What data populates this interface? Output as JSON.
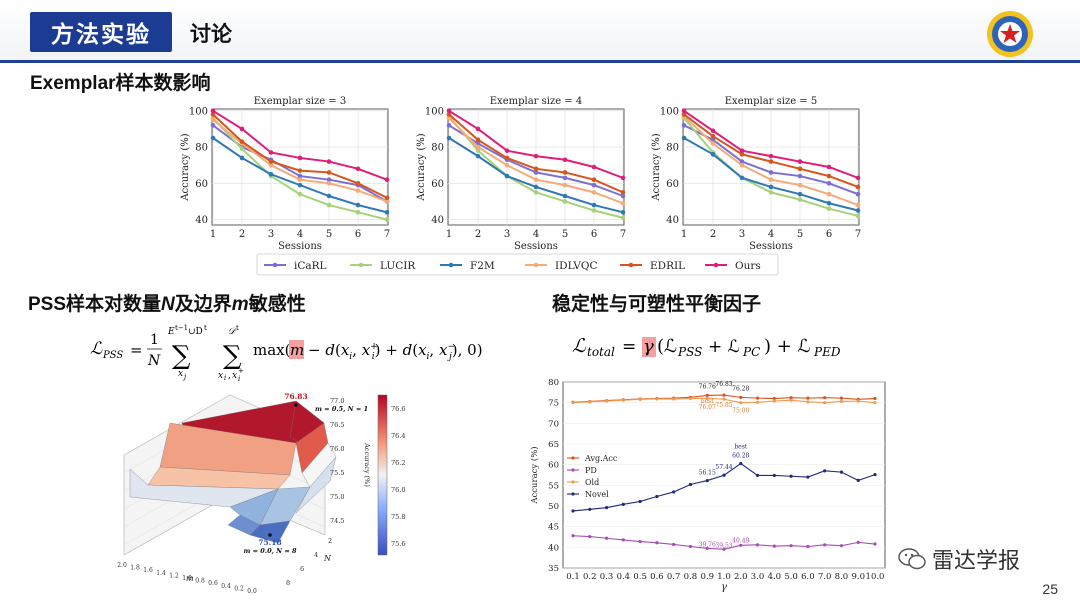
{
  "header": {
    "tab": "方法实验",
    "subtitle": "讨论"
  },
  "sections": {
    "exemplar": "Exemplar样本数影响",
    "pss_pre": "PSS样本对数量",
    "pss_n": "N",
    "pss_mid": "及边界",
    "pss_m": "m",
    "pss_post": "敏感性",
    "balance": "稳定性与可塑性平衡因子"
  },
  "page_number": "25",
  "watermark": "雷达学报",
  "colors": {
    "icarl": "#7b6fd4",
    "lucir": "#a6d27a",
    "f2m": "#2f78b6",
    "idlvqc": "#f4ab78",
    "edril": "#d9541b",
    "ours": "#de1e78"
  },
  "chart_data": [
    {
      "type": "line",
      "title": "Exemplar size = 3",
      "xlabel": "Sessions",
      "ylabel": "Accuracy (%)",
      "x": [
        1,
        2,
        3,
        4,
        5,
        6,
        7
      ],
      "ylim": [
        37,
        101
      ],
      "yticks": [
        40,
        60,
        80,
        100
      ],
      "series": [
        {
          "name": "iCaRL",
          "values": [
            92,
            80,
            73,
            64,
            62,
            59,
            50
          ]
        },
        {
          "name": "LUCIR",
          "values": [
            96,
            79,
            64,
            54,
            48,
            44,
            40
          ]
        },
        {
          "name": "F2M",
          "values": [
            85,
            74,
            65,
            59,
            53,
            48,
            44
          ]
        },
        {
          "name": "IDLVQC",
          "values": [
            95,
            82,
            70,
            62,
            60,
            56,
            50
          ]
        },
        {
          "name": "EDRIL",
          "values": [
            98,
            83,
            72,
            67,
            66,
            60,
            52
          ]
        },
        {
          "name": "Ours",
          "values": [
            100,
            90,
            77,
            74,
            72,
            68,
            62
          ]
        }
      ]
    },
    {
      "type": "line",
      "title": "Exemplar size = 4",
      "xlabel": "Sessions",
      "ylabel": "Accuracy (%)",
      "x": [
        1,
        2,
        3,
        4,
        5,
        6,
        7
      ],
      "ylim": [
        37,
        101
      ],
      "yticks": [
        40,
        60,
        80,
        100
      ],
      "series": [
        {
          "name": "iCaRL",
          "values": [
            92,
            82,
            73,
            66,
            63,
            59,
            53
          ]
        },
        {
          "name": "LUCIR",
          "values": [
            97,
            78,
            64,
            55,
            50,
            45,
            41
          ]
        },
        {
          "name": "F2M",
          "values": [
            85,
            75,
            64,
            58,
            53,
            48,
            44
          ]
        },
        {
          "name": "IDLVQC",
          "values": [
            96,
            80,
            70,
            62,
            59,
            55,
            49
          ]
        },
        {
          "name": "EDRIL",
          "values": [
            98,
            84,
            74,
            68,
            66,
            62,
            55
          ]
        },
        {
          "name": "Ours",
          "values": [
            100,
            90,
            78,
            75,
            73,
            69,
            63
          ]
        }
      ]
    },
    {
      "type": "line",
      "title": "Exemplar size = 5",
      "xlabel": "Sessions",
      "ylabel": "Accuracy (%)",
      "x": [
        1,
        2,
        3,
        4,
        5,
        6,
        7
      ],
      "ylim": [
        37,
        101
      ],
      "yticks": [
        40,
        60,
        80,
        100
      ],
      "series": [
        {
          "name": "iCaRL",
          "values": [
            92,
            84,
            72,
            66,
            64,
            60,
            54
          ]
        },
        {
          "name": "LUCIR",
          "values": [
            96,
            77,
            63,
            55,
            51,
            46,
            42
          ]
        },
        {
          "name": "F2M",
          "values": [
            85,
            76,
            63,
            58,
            54,
            49,
            45
          ]
        },
        {
          "name": "IDLVQC",
          "values": [
            97,
            82,
            70,
            62,
            59,
            54,
            48
          ]
        },
        {
          "name": "EDRIL",
          "values": [
            98,
            86,
            76,
            72,
            68,
            64,
            58
          ]
        },
        {
          "name": "Ours",
          "values": [
            100,
            89,
            78,
            75,
            72,
            69,
            63
          ]
        }
      ]
    },
    {
      "type": "line",
      "xlabel": "γ",
      "ylabel": "Accuracy (%)",
      "ylim": [
        35,
        80
      ],
      "yticks": [
        35,
        40,
        45,
        50,
        55,
        60,
        65,
        70,
        75,
        80
      ],
      "categories": [
        "0.1",
        "0.2",
        "0.3",
        "0.4",
        "0.5",
        "0.6",
        "0.7",
        "0.8",
        "0.9",
        "1.0",
        "2.0",
        "3.0",
        "4.0",
        "5.0",
        "6.0",
        "7.0",
        "8.0",
        "9.0",
        "10.0"
      ],
      "series": [
        {
          "name": "Avg.Acc",
          "values": [
            75.1,
            75.3,
            75.5,
            75.7,
            75.9,
            76.0,
            76.1,
            76.3,
            76.76,
            76.83,
            76.28,
            76.1,
            76.0,
            76.2,
            76.1,
            76.2,
            76.1,
            75.8,
            76.0
          ]
        },
        {
          "name": "PD",
          "values": [
            42.8,
            42.6,
            42.2,
            41.8,
            41.4,
            41.1,
            40.7,
            40.2,
            39.76,
            39.53,
            40.49,
            40.6,
            40.3,
            40.4,
            40.2,
            40.6,
            40.4,
            41.2,
            40.8
          ]
        },
        {
          "name": "Old",
          "values": [
            75.0,
            75.2,
            75.4,
            75.6,
            75.8,
            75.9,
            75.9,
            76.0,
            76.07,
            75.85,
            75.0,
            75.1,
            75.4,
            75.6,
            75.2,
            75.0,
            75.3,
            75.4,
            75.0
          ]
        },
        {
          "name": "Novel",
          "values": [
            48.8,
            49.2,
            49.6,
            50.4,
            51.1,
            52.3,
            53.4,
            55.2,
            56.15,
            57.44,
            60.28,
            57.4,
            57.4,
            57.2,
            57.0,
            58.5,
            58.2,
            56.2,
            57.6
          ]
        }
      ],
      "annotations": [
        {
          "x": "0.9",
          "series": "Avg.Acc",
          "text": "76.76"
        },
        {
          "x": "1.0",
          "series": "Avg.Acc",
          "text": "76.83"
        },
        {
          "x": "2.0",
          "series": "Avg.Acc",
          "text": "76.28"
        },
        {
          "x": "0.9",
          "series": "Old",
          "text": "76.07"
        },
        {
          "x": "1.0",
          "series": "Old",
          "text": "75.85"
        },
        {
          "x": "2.0",
          "series": "Old",
          "text": "75.00"
        },
        {
          "x": "0.9",
          "series": "Old",
          "text": "best"
        },
        {
          "x": "0.9",
          "series": "Novel",
          "text": "56.15"
        },
        {
          "x": "1.0",
          "series": "Novel",
          "text": "57.44"
        },
        {
          "x": "2.0",
          "series": "Novel",
          "text": "60.28"
        },
        {
          "x": "2.0",
          "series": "Novel",
          "text": "best"
        },
        {
          "x": "0.9",
          "series": "PD",
          "text": "39.76"
        },
        {
          "x": "1.0",
          "series": "PD",
          "text": "39.53"
        },
        {
          "x": "2.0",
          "series": "PD",
          "text": "40.49"
        }
      ]
    },
    {
      "type": "heatmap",
      "x_name": "m",
      "y_name": "N",
      "zlabel": "Accuracy (%)",
      "m_ticks": [
        "2.0",
        "1.8",
        "1.6",
        "1.4",
        "1.2",
        "1.0",
        "0.8",
        "0.6",
        "0.4",
        "0.2",
        "0.0"
      ],
      "n_ticks": [
        "8",
        "6",
        "4",
        "2"
      ],
      "z_ticks": [
        "74.5",
        "75.0",
        "75.5",
        "76.0",
        "76.5",
        "77.0"
      ],
      "colorbar_ticks": [
        "75.6",
        "75.8",
        "76.0",
        "76.2",
        "76.4",
        "76.6"
      ],
      "max": {
        "value": "76.83",
        "params": "m = 0.5, N = 1"
      },
      "min": {
        "value": "75.18",
        "params": "m = 0.0, N = 8"
      }
    }
  ]
}
